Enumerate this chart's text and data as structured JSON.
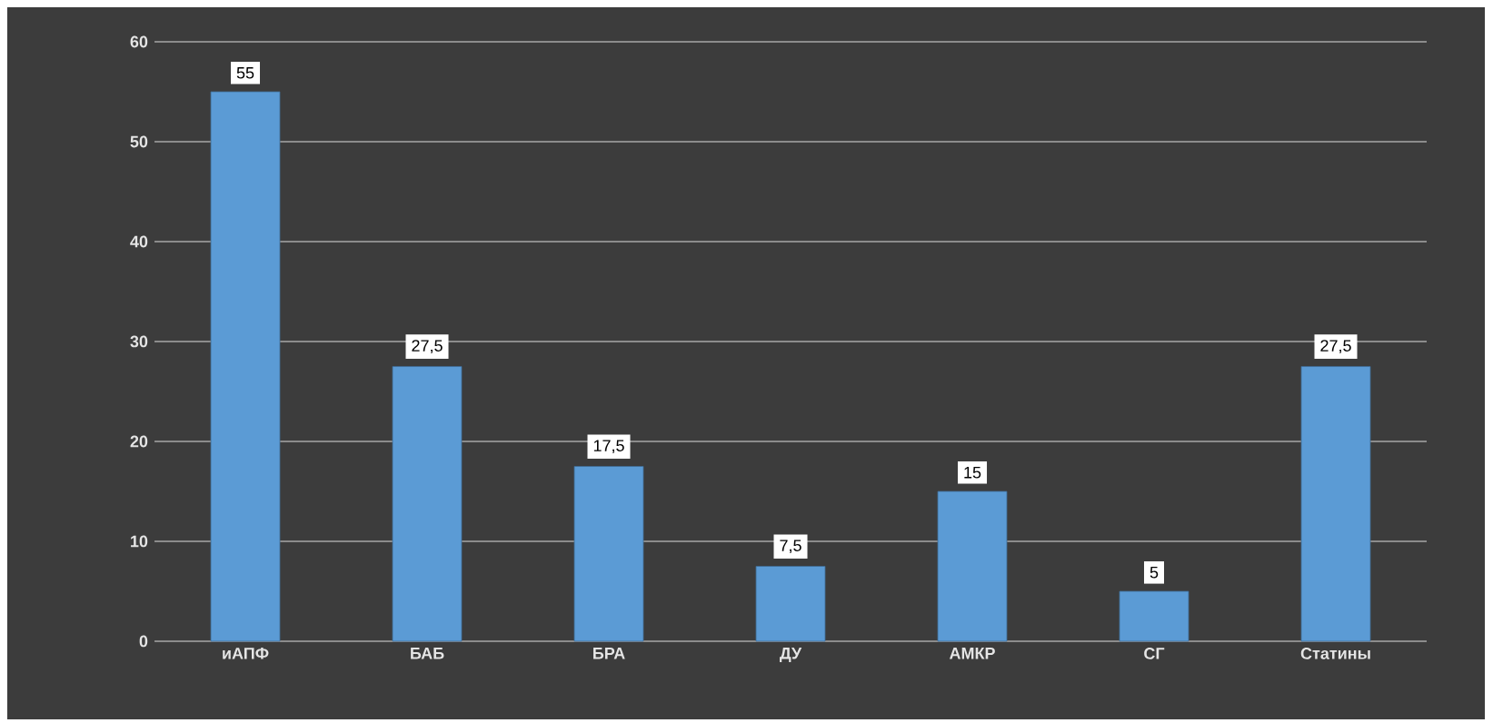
{
  "chart_data": {
    "type": "bar",
    "categories": [
      "иАПФ",
      "БАБ",
      "БРА",
      "ДУ",
      "АМКР",
      "СГ",
      "Статины"
    ],
    "values": [
      55,
      27.5,
      17.5,
      7.5,
      15,
      5,
      27.5
    ],
    "value_labels": [
      "55",
      "27,5",
      "17,5",
      "7,5",
      "15",
      "5",
      "27,5"
    ],
    "color": "#5b9bd5",
    "ylim": [
      0,
      60
    ],
    "yticks": [
      0,
      10,
      20,
      30,
      40,
      50,
      60
    ],
    "grid": "y"
  }
}
